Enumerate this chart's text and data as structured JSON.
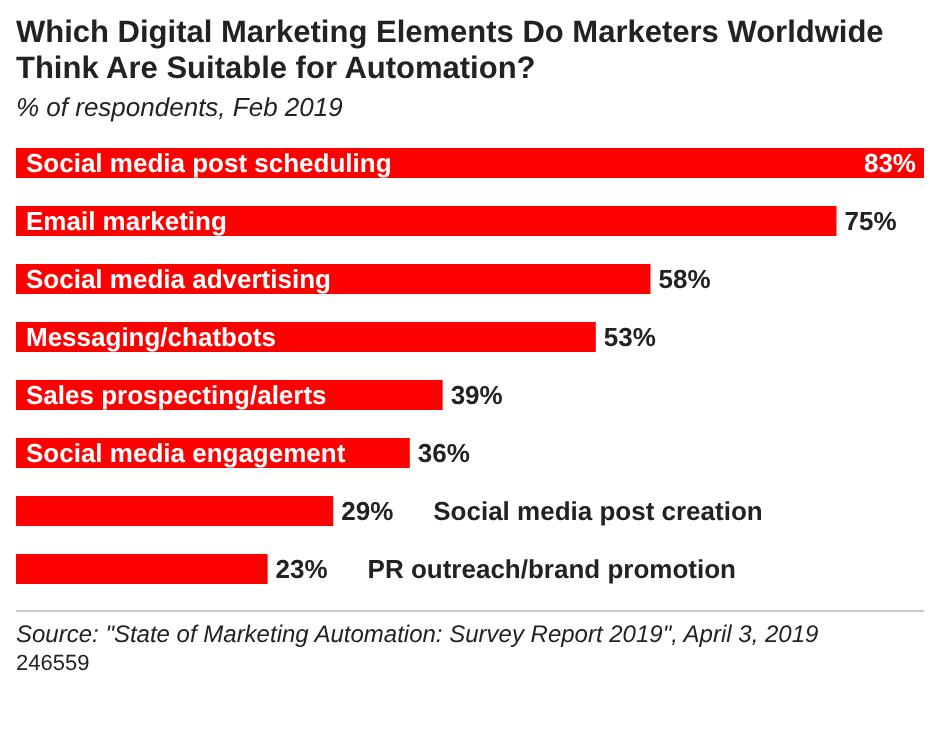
{
  "chart_data": {
    "type": "bar",
    "orientation": "horizontal",
    "title": "Which Digital Marketing Elements Do Marketers Worldwide Think Are Suitable for Automation?",
    "subtitle": "% of respondents, Feb 2019",
    "categories": [
      "Social media post scheduling",
      "Email marketing",
      "Social media advertising",
      "Messaging/chatbots",
      "Sales prospecting/alerts",
      "Social media engagement",
      "Social media post creation",
      "PR outreach/brand promotion"
    ],
    "values": [
      83,
      75,
      58,
      53,
      39,
      36,
      29,
      23
    ],
    "value_labels": [
      "83%",
      "75%",
      "58%",
      "53%",
      "39%",
      "36%",
      "29%",
      "23%"
    ],
    "color": "#ff0000",
    "annotations": [
      "Source: \"State of Marketing Automation: Survey Report 2019\", April 3, 2019",
      "246559"
    ]
  }
}
